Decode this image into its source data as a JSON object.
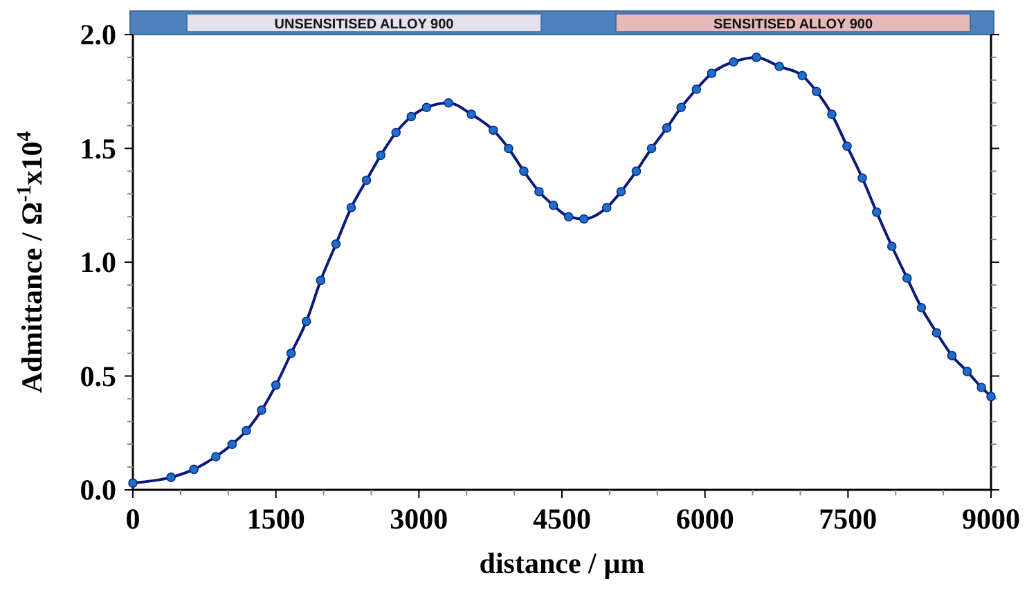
{
  "chart_data": {
    "type": "line",
    "xlabel": "distance / µm",
    "ylabel": "Admittance / Ω$^{-1}$x10$^{4}$",
    "xlim": [
      0,
      9000
    ],
    "xticks": [
      0,
      {
        "value": 500,
        "label": null
      },
      {
        "value": 1000,
        "label": null
      },
      1500,
      {
        "value": 2000,
        "label": null
      },
      {
        "value": 2500,
        "label": null
      },
      3000,
      {
        "value": 3500,
        "label": null
      },
      {
        "value": 4000,
        "label": null
      },
      4500,
      {
        "value": 5000,
        "label": null
      },
      {
        "value": 5500,
        "label": null
      },
      6000,
      {
        "value": 6500,
        "label": null
      },
      {
        "value": 7000,
        "label": null
      },
      7500,
      {
        "value": 8000,
        "label": null
      },
      {
        "value": 8500,
        "label": null
      },
      9000
    ],
    "ylim": [
      0,
      2.0
    ],
    "yticks": [
      {
        "value": 0,
        "label": "0.0"
      },
      {
        "value": 0.1,
        "label": null
      },
      {
        "value": 0.2,
        "label": null
      },
      {
        "value": 0.3,
        "label": null
      },
      {
        "value": 0.4,
        "label": null
      },
      0.5,
      {
        "value": 0.6,
        "label": null
      },
      {
        "value": 0.7,
        "label": null
      },
      {
        "value": 0.8,
        "label": null
      },
      {
        "value": 0.9,
        "label": null
      },
      {
        "value": 1,
        "label": "1.0"
      },
      {
        "value": 1.1,
        "label": null
      },
      {
        "value": 1.2,
        "label": null
      },
      {
        "value": 1.3,
        "label": null
      },
      {
        "value": 1.4,
        "label": null
      },
      1.5,
      {
        "value": 1.6,
        "label": null
      },
      {
        "value": 1.7,
        "label": null
      },
      {
        "value": 1.8,
        "label": null
      },
      {
        "value": 1.9,
        "label": null
      },
      {
        "value": 2,
        "label": "2.0"
      }
    ],
    "grid": false,
    "marker": "circle",
    "line_style": "solid",
    "annotations": [
      "UNSENSITISED ALLOY 900",
      "SENSITISED ALLOY 900"
    ],
    "series": [
      {
        "color": "#1f6fc8",
        "x": [
          0,
          400,
          640,
          870,
          1040,
          1190,
          1350,
          1500,
          1660,
          1820,
          1970,
          2130,
          2290,
          2450,
          2600,
          2760,
          2920,
          3080,
          3310,
          3550,
          3780,
          3940,
          4100,
          4260,
          4410,
          4570,
          4730,
          4970,
          5120,
          5280,
          5440,
          5600,
          5750,
          5910,
          6070,
          6300,
          6540,
          6780,
          7020,
          7170,
          7330,
          7490,
          7650,
          7800,
          7960,
          8120,
          8270,
          8430,
          8590,
          8750,
          8900,
          9000
        ],
        "values": [
          0.03,
          0.055,
          0.09,
          0.146,
          0.2,
          0.26,
          0.35,
          0.46,
          0.6,
          0.74,
          0.92,
          1.08,
          1.24,
          1.36,
          1.47,
          1.57,
          1.64,
          1.68,
          1.7,
          1.65,
          1.58,
          1.5,
          1.4,
          1.31,
          1.25,
          1.2,
          1.19,
          1.24,
          1.31,
          1.4,
          1.5,
          1.59,
          1.68,
          1.76,
          1.83,
          1.88,
          1.9,
          1.86,
          1.82,
          1.75,
          1.65,
          1.51,
          1.37,
          1.22,
          1.07,
          0.93,
          0.8,
          0.69,
          0.59,
          0.52,
          0.45,
          0.41
        ]
      }
    ]
  }
}
